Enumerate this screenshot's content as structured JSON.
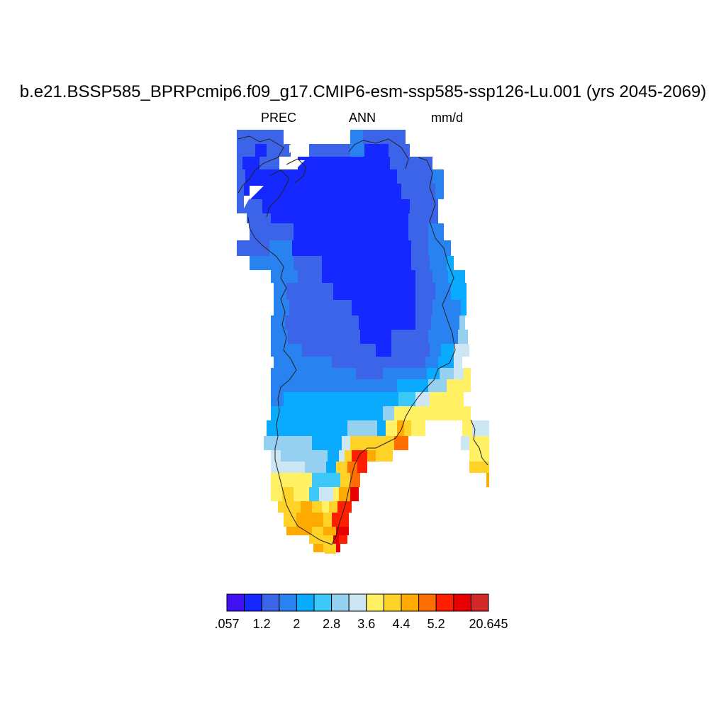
{
  "title": "b.e21.BSSP585_BPRPcmip6.f09_g17.CMIP6-esm-ssp585-ssp126-Lu.001 (yrs 2045-2069)",
  "subtitle": {
    "variable": "PREC",
    "season": "ANN",
    "units": "mm/d"
  },
  "colorbar": {
    "colors": [
      "#4010f0",
      "#1428ff",
      "#3c64e8",
      "#2882f0",
      "#0aaaff",
      "#3cc8f8",
      "#96d0f0",
      "#cde6f4",
      "#fff064",
      "#ffd228",
      "#ffaa00",
      "#ff6e00",
      "#ff1e00",
      "#e60000",
      "#d22828"
    ],
    "tick_labels": [
      ".057",
      "1.2",
      "2",
      "2.8",
      "3.6",
      "4.4",
      "5.2",
      "20.645"
    ],
    "tick_indices": [
      0,
      2,
      4,
      6,
      8,
      10,
      12,
      15
    ]
  },
  "map": {
    "region": "Greenland",
    "grid_columns_lon_deg_w": [
      75,
      72.5,
      70,
      67.5,
      65,
      62.5,
      60,
      57.5,
      55,
      52.5,
      50,
      47.5,
      45,
      42.5,
      40,
      37.5,
      35,
      32.5,
      30,
      27.5,
      25,
      22.5,
      20
    ],
    "grid_rows_lat_deg_n": [
      83.5,
      82.5,
      81.5,
      80.5,
      79.5,
      78.5,
      77.5,
      76.5,
      75.5,
      74.5,
      73.5,
      72.5,
      71.5,
      70.5,
      69.5,
      68.5,
      67.5,
      66.5,
      65.5,
      64.5,
      63.5,
      62.5,
      61.5,
      60.5
    ]
  }
}
